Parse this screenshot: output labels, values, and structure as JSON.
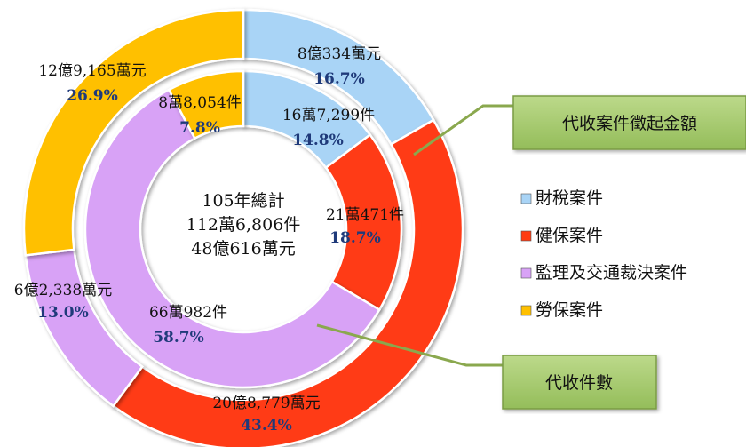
{
  "chart_data": {
    "type": "pie",
    "center_text": [
      "105年總計",
      "112萬6,806件",
      "48億616萬元"
    ],
    "categories": [
      "財稅案件",
      "健保案件",
      "監理及交通裁決案件",
      "勞保案件"
    ],
    "colors": [
      "#a9d4f6",
      "#ff3b12",
      "#d8a2f6",
      "#ffc000"
    ],
    "series": [
      {
        "name": "代收件數",
        "ring": "inner",
        "values": [
          14.8,
          18.7,
          58.7,
          7.8
        ],
        "labels": [
          "16萬7,299件",
          "21萬471件",
          "66萬982件",
          "8萬8,054件"
        ],
        "percents": [
          "14.8%",
          "18.7%",
          "58.7%",
          "7.8%"
        ]
      },
      {
        "name": "代收案件徵起金額",
        "ring": "outer",
        "values": [
          16.7,
          43.4,
          13.0,
          26.9
        ],
        "labels": [
          "8億334萬元",
          "20億8,779萬元",
          "6億2,338萬元",
          "12億9,165萬元"
        ],
        "percents": [
          "16.7%",
          "43.4%",
          "13.0%",
          "26.9%"
        ]
      }
    ],
    "legend": {
      "placement": "right",
      "entries": [
        "財稅案件",
        "健保案件",
        "監理及交通裁決案件",
        "勞保案件"
      ]
    },
    "callouts": [
      "代收案件徵起金額",
      "代收件數"
    ]
  }
}
